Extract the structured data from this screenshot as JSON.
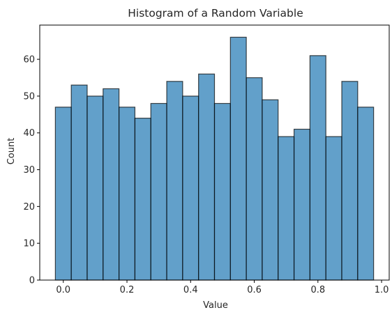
{
  "chart_data": {
    "type": "bar",
    "title": "Histogram of a Random Variable",
    "xlabel": "Value",
    "ylabel": "Count",
    "bin_width": 0.05,
    "bin_start": -0.025,
    "values": [
      47,
      53,
      50,
      52,
      47,
      44,
      48,
      54,
      50,
      56,
      48,
      66,
      55,
      49,
      39,
      41,
      61,
      39,
      54,
      47
    ],
    "xlim": [
      -0.074,
      1.024
    ],
    "ylim": [
      0,
      69.3
    ],
    "xticks": [
      "0.0",
      "0.2",
      "0.4",
      "0.6",
      "0.8",
      "1.0"
    ],
    "xtick_values": [
      0,
      0.2,
      0.4,
      0.6,
      0.8,
      1.0
    ],
    "yticks": [
      "0",
      "10",
      "20",
      "30",
      "40",
      "50",
      "60"
    ],
    "ytick_values": [
      0,
      10,
      20,
      30,
      40,
      50,
      60
    ],
    "grid": false,
    "colors": {
      "bar_fill": "#1f77b4",
      "bar_edge": "#000000",
      "axis": "#000000"
    }
  }
}
